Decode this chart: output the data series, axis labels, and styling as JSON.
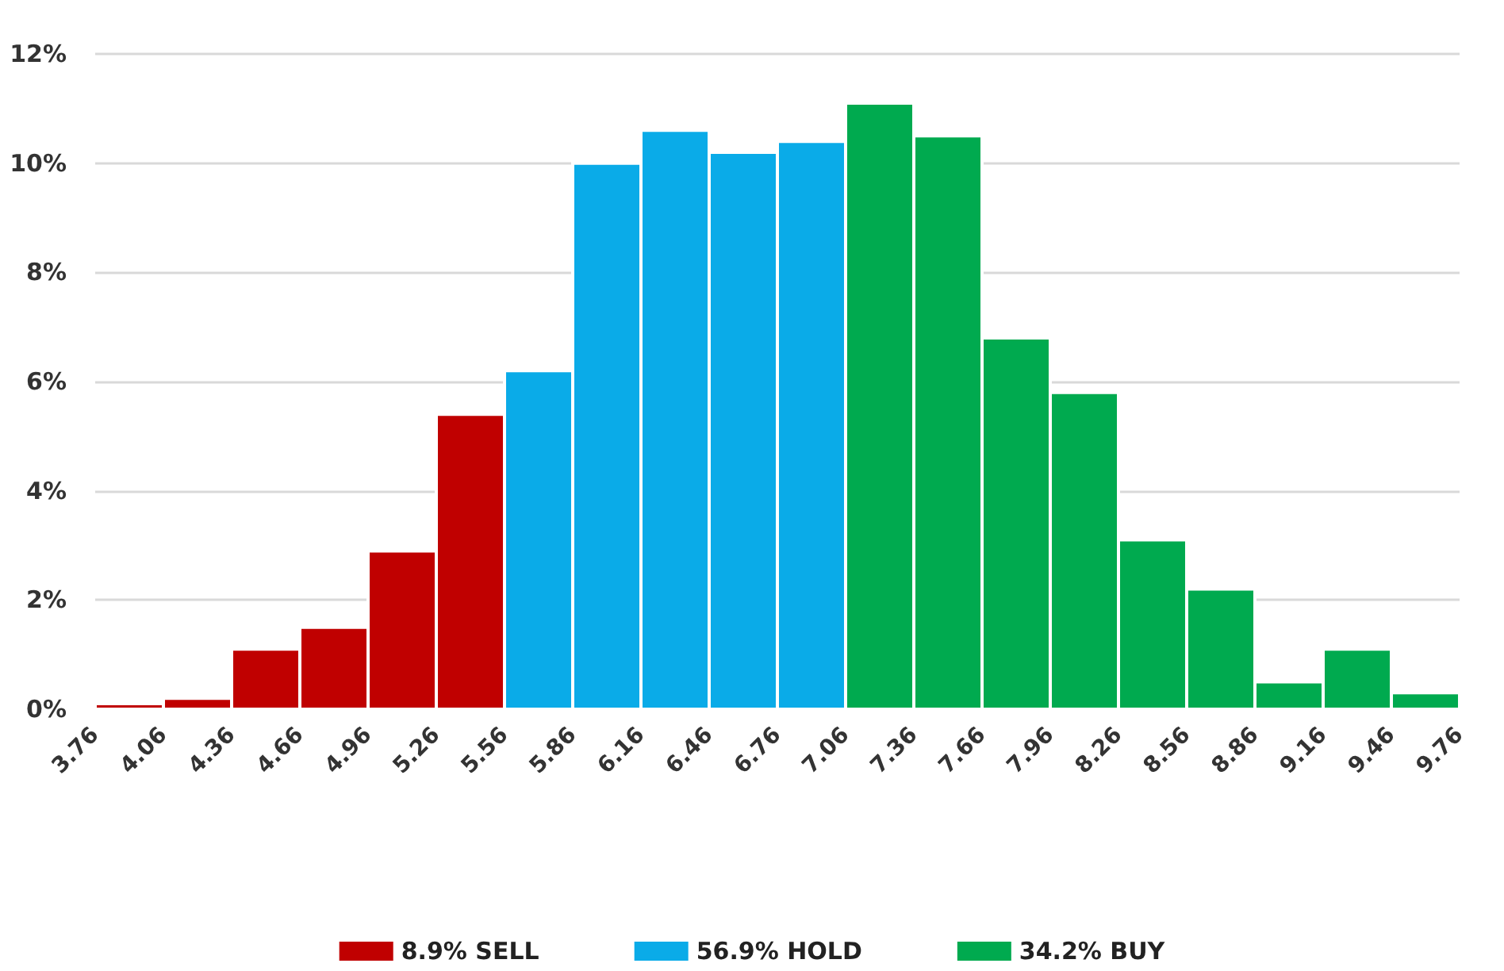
{
  "chart_data": {
    "type": "histogram",
    "bins": [
      3.76,
      4.06,
      4.36,
      4.66,
      4.96,
      5.26,
      5.56,
      5.86,
      6.16,
      6.46,
      6.76,
      7.06,
      7.36,
      7.66,
      7.96,
      8.26,
      8.56,
      8.86,
      9.16,
      9.46,
      9.76
    ],
    "series": [
      {
        "name": "8.9% SELL",
        "color": "#c00000",
        "values": [
          0.1,
          0.2,
          1.1,
          1.5,
          2.9,
          5.4,
          null,
          null,
          null,
          null,
          null,
          null,
          null,
          null,
          null,
          null,
          null,
          null,
          null,
          null
        ]
      },
      {
        "name": "56.9% HOLD",
        "color": "#0aabe8",
        "values": [
          null,
          null,
          null,
          null,
          null,
          null,
          6.2,
          10.0,
          10.6,
          10.2,
          10.4,
          null,
          null,
          null,
          null,
          null,
          null,
          null,
          null,
          null
        ]
      },
      {
        "name": "34.2% BUY",
        "color": "#00aa4f",
        "values": [
          null,
          null,
          null,
          null,
          null,
          null,
          null,
          null,
          null,
          null,
          null,
          11.1,
          10.5,
          6.8,
          5.8,
          3.1,
          2.2,
          0.5,
          1.1,
          0.3
        ]
      }
    ],
    "xlim": [
      3.76,
      9.76
    ],
    "xticks": [
      3.76,
      4.06,
      4.36,
      4.66,
      4.96,
      5.26,
      5.56,
      5.86,
      6.16,
      6.46,
      6.76,
      7.06,
      7.36,
      7.66,
      7.96,
      8.26,
      8.56,
      8.86,
      9.16,
      9.46,
      9.76
    ],
    "ylim": [
      0,
      12
    ],
    "yticks": [
      {
        "value": 0,
        "label": "0%"
      },
      {
        "value": 2,
        "label": "2%"
      },
      {
        "value": 4,
        "label": "4%"
      },
      {
        "value": 6,
        "label": "6%"
      },
      {
        "value": 8,
        "label": "8%"
      },
      {
        "value": 10,
        "label": "10%"
      },
      {
        "value": 12,
        "label": "12%"
      }
    ],
    "grid": "y",
    "legend": "bottom"
  }
}
